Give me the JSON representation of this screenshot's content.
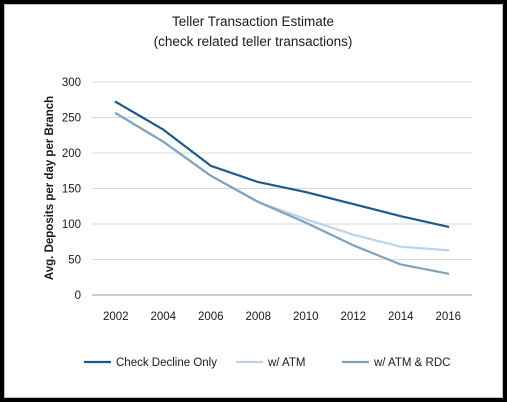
{
  "chart_data": {
    "type": "line",
    "title": "Teller Transaction Estimate",
    "subtitle": "(check related teller transactions)",
    "xlabel": "",
    "ylabel": "Avg. Deposits per day per Branch",
    "x": [
      "2002",
      "2004",
      "2006",
      "2008",
      "2010",
      "2012",
      "2014",
      "2016"
    ],
    "ylim": [
      0,
      300
    ],
    "yticks": [
      0,
      50,
      100,
      150,
      200,
      250,
      300
    ],
    "grid": "horizontal",
    "legend_position": "bottom",
    "series": [
      {
        "name": "Check Decline Only",
        "color": "#1f5a8a",
        "values": [
          272,
          233,
          182,
          159,
          145,
          128,
          111,
          96
        ]
      },
      {
        "name": "w/ ATM",
        "color": "#bcd4e6",
        "values": [
          256,
          216,
          168,
          131,
          107,
          85,
          68,
          63
        ]
      },
      {
        "name": "w/ ATM & RDC",
        "color": "#7fa3bf",
        "values": [
          256,
          216,
          168,
          131,
          102,
          70,
          43,
          30
        ]
      }
    ]
  }
}
